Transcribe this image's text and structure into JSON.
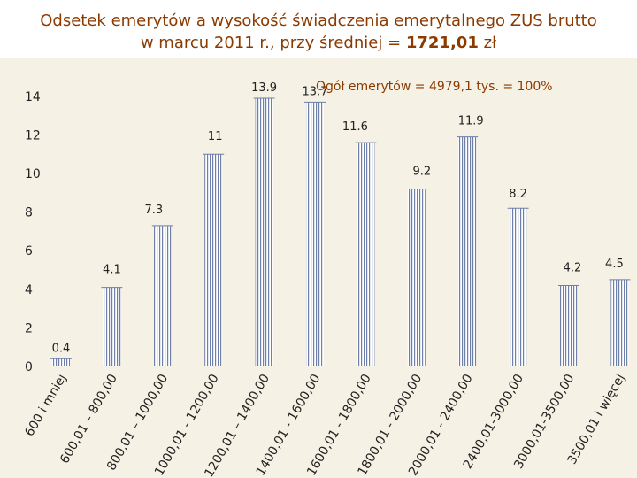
{
  "title": {
    "line1": "Odsetek emerytów a wysokość świadczenia emerytalnego ZUS brutto",
    "line2_prefix": "w marcu 2011 r., przy średniej = ",
    "line2_bold": "1721,01",
    "line2_suffix": " zł"
  },
  "annotation": "Ogół emerytów = 4979,1 tys. = 100%",
  "colors": {
    "title": "#8b3a00",
    "plot_bg": "#f5f1e4",
    "bar_fill": "#ffffff",
    "bar_stripe": "#6e7fa8",
    "axis_text": "#222222"
  },
  "chart_data": {
    "type": "bar",
    "categories": [
      "600 i mniej",
      "600,01 – 800,00",
      "800,01 – 1000,00",
      "1000,01 - 1200,00",
      "1200,01 – 1400,00",
      "1400,01 - 1600,00",
      "1600,01 - 1800,00",
      "1800,01 - 2000,00",
      "2000,01 - 2400,00",
      "2400,01-3000,00",
      "3000,01-3500,00",
      "3500,01 i więcej"
    ],
    "values": [
      0.4,
      4.1,
      7.3,
      11,
      13.9,
      13.7,
      11.6,
      9.2,
      11.9,
      8.2,
      4.2,
      4.5
    ],
    "value_labels": [
      "0.4",
      "4.1",
      "7.3",
      "11",
      "13.9",
      "13.7",
      "11.6",
      "9.2",
      "11.9",
      "8.2",
      "4.2",
      "4.5"
    ],
    "yticks": [
      "0",
      "2",
      "4",
      "6",
      "8",
      "10",
      "12",
      "14"
    ],
    "ylim": [
      0,
      14
    ],
    "xlabel": "",
    "ylabel": ""
  }
}
